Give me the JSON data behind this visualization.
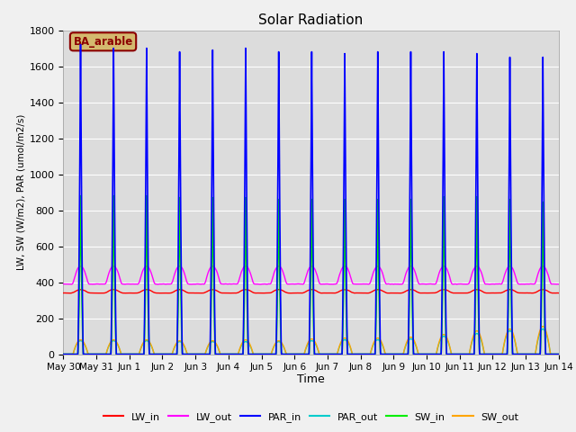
{
  "title": "Solar Radiation",
  "xlabel": "Time",
  "ylabel": "LW, SW (W/m2), PAR (umol/m2/s)",
  "ylim": [
    0,
    1800
  ],
  "yticks": [
    0,
    200,
    400,
    600,
    800,
    1000,
    1200,
    1400,
    1600,
    1800
  ],
  "annotation": "BA_arable",
  "annotation_color": "#8B0000",
  "annotation_bg": "#d4b96e",
  "plot_bg": "#dcdcdc",
  "series": {
    "LW_in": {
      "color": "#ff0000",
      "lw": 1.0
    },
    "LW_out": {
      "color": "#ff00ff",
      "lw": 1.0
    },
    "PAR_in": {
      "color": "#0000ff",
      "lw": 1.2
    },
    "PAR_out": {
      "color": "#00cccc",
      "lw": 1.0
    },
    "SW_in": {
      "color": "#00ee00",
      "lw": 1.2
    },
    "SW_out": {
      "color": "#ffa500",
      "lw": 1.0
    }
  },
  "num_days": 15,
  "points_per_day": 1440,
  "day_labels": [
    "May 30",
    "May 31",
    "Jun 1",
    "Jun 2",
    "Jun 3",
    "Jun 4",
    "Jun 5",
    "Jun 6",
    "Jun 7",
    "Jun 8",
    "Jun 9",
    "Jun 10",
    "Jun 11",
    "Jun 12",
    "Jun 13",
    "Jun 14"
  ],
  "grid_color": "#ffffff",
  "grid_lw": 0.8,
  "par_in_peaks": [
    1720,
    1700,
    1700,
    1680,
    1690,
    1700,
    1680,
    1680,
    1670,
    1680,
    1680,
    1680,
    1670,
    1650,
    1650
  ],
  "sw_in_peaks": [
    880,
    880,
    880,
    870,
    870,
    870,
    860,
    860,
    860,
    860,
    860,
    875,
    875,
    860,
    845
  ],
  "sw_out_peaks": [
    80,
    80,
    80,
    75,
    75,
    80,
    75,
    85,
    90,
    90,
    95,
    110,
    130,
    140,
    155
  ],
  "par_out_peaks": [
    75,
    75,
    75,
    70,
    70,
    70,
    70,
    75,
    80,
    80,
    85,
    100,
    115,
    130,
    140
  ],
  "lw_in_base": 340,
  "lw_out_base": 390
}
